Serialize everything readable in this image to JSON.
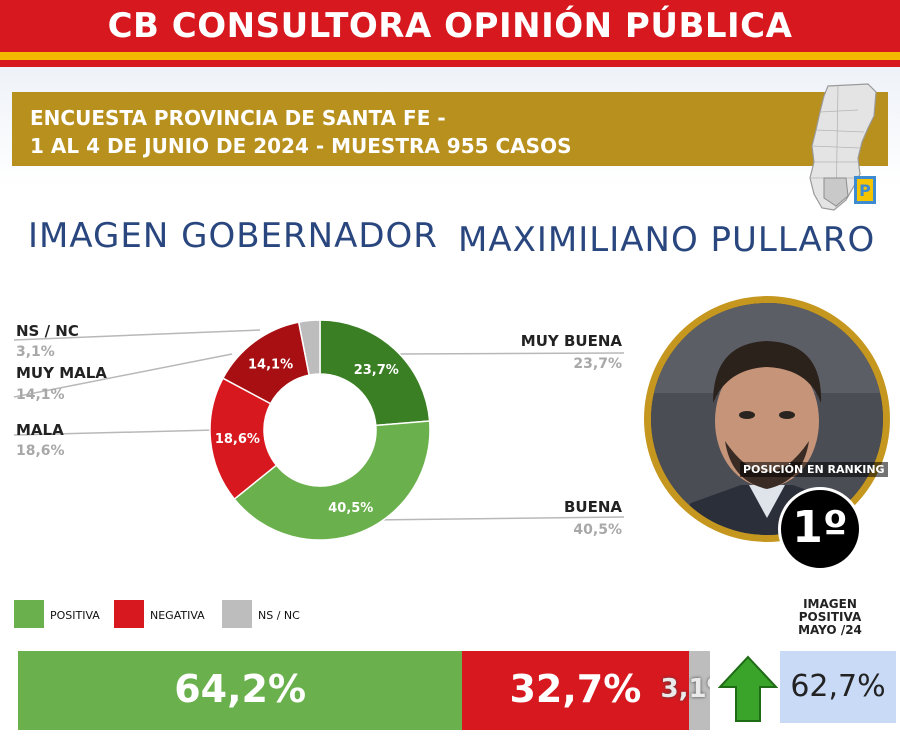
{
  "header": {
    "brand": "CB CONSULTORA OPINIÓN PÚBLICA",
    "survey_line1": "ENCUESTA PROVINCIA DE SANTA FE -",
    "survey_line2": "1 AL 4 DE JUNIO DE 2024 - MUESTRA 955 CASOS"
  },
  "title": {
    "label": "IMAGEN GOBERNADOR",
    "name": "MAXIMILIANO PULLARO"
  },
  "chart_data": [
    {
      "type": "pie",
      "variant": "donut",
      "categories": [
        "MUY BUENA",
        "BUENA",
        "MALA",
        "MUY MALA",
        "NS / NC"
      ],
      "values": [
        23.7,
        40.5,
        18.6,
        14.1,
        3.1
      ],
      "value_labels": [
        "23,7%",
        "40,5%",
        "18,6%",
        "14,1%",
        ""
      ],
      "legend_values": [
        "23,7%",
        "40,5%",
        "18,6%",
        "14,1%",
        "3,1%"
      ],
      "colors": [
        "#3b7f24",
        "#6ab04c",
        "#d7181e",
        "#a80f12",
        "#bdbdbd"
      ]
    },
    {
      "type": "bar",
      "variant": "stacked-horizontal",
      "categories": [
        "POSITIVA",
        "NEGATIVA",
        "NS / NC"
      ],
      "values": [
        64.2,
        32.7,
        3.1
      ],
      "value_labels": [
        "64,2%",
        "32,7%",
        "3,1%"
      ],
      "colors": [
        "#6ab04c",
        "#d7181e",
        "#bdbdbd"
      ]
    }
  ],
  "ranking": {
    "label": "POSICIÓN EN RANKING",
    "value": "1º"
  },
  "previous": {
    "heading_lines": [
      "IMAGEN",
      "POSITIVA",
      "MAYO /24"
    ],
    "value": "62,7%",
    "trend": "up-arrow-icon",
    "trend_color": "#3aa329"
  },
  "map": {
    "badge": "P"
  }
}
